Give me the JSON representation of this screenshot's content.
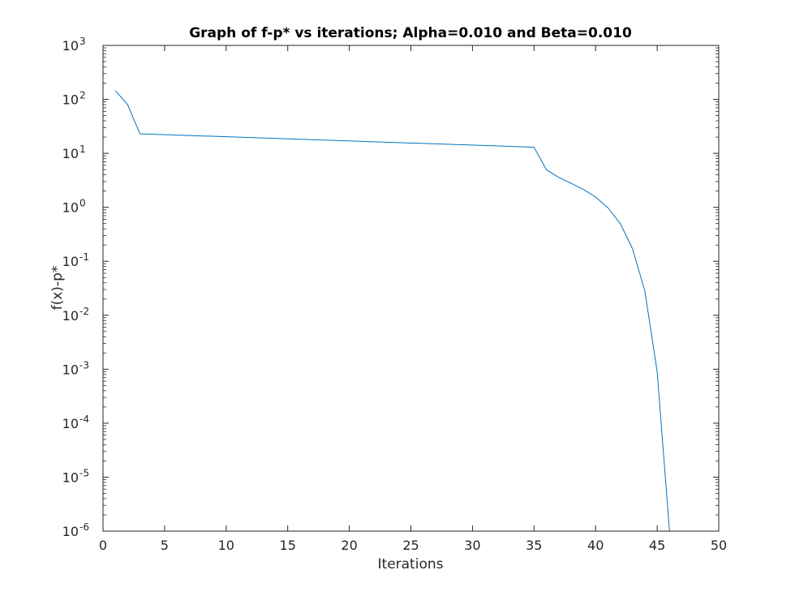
{
  "chart_data": {
    "type": "line",
    "title": "Graph of f-p* vs iterations; Alpha=0.010 and Beta=0.010",
    "xlabel": "Iterations",
    "ylabel": "f(x)-p*",
    "xlim": [
      0,
      50
    ],
    "ylim": [
      1e-06,
      1000
    ],
    "yscale": "log",
    "grid": false,
    "xticks": [
      "0",
      "5",
      "10",
      "15",
      "20",
      "25",
      "30",
      "35",
      "40",
      "45",
      "50"
    ],
    "yticks": [
      {
        "base": "10",
        "exp": "-6"
      },
      {
        "base": "10",
        "exp": "-5"
      },
      {
        "base": "10",
        "exp": "-4"
      },
      {
        "base": "10",
        "exp": "-3"
      },
      {
        "base": "10",
        "exp": "-2"
      },
      {
        "base": "10",
        "exp": "-1"
      },
      {
        "base": "10",
        "exp": "0"
      },
      {
        "base": "10",
        "exp": "1"
      },
      {
        "base": "10",
        "exp": "2"
      },
      {
        "base": "10",
        "exp": "3"
      }
    ],
    "series": [
      {
        "color": "#0072bd",
        "x": [
          1,
          2,
          3,
          35,
          36,
          37,
          38,
          39,
          40,
          41,
          42,
          43,
          44,
          45,
          46
        ],
        "y": [
          145,
          80,
          23,
          13,
          5,
          3.6,
          2.8,
          2.15,
          1.55,
          0.98,
          0.5,
          0.17,
          0.028,
          0.0009,
          1e-06
        ]
      }
    ]
  }
}
